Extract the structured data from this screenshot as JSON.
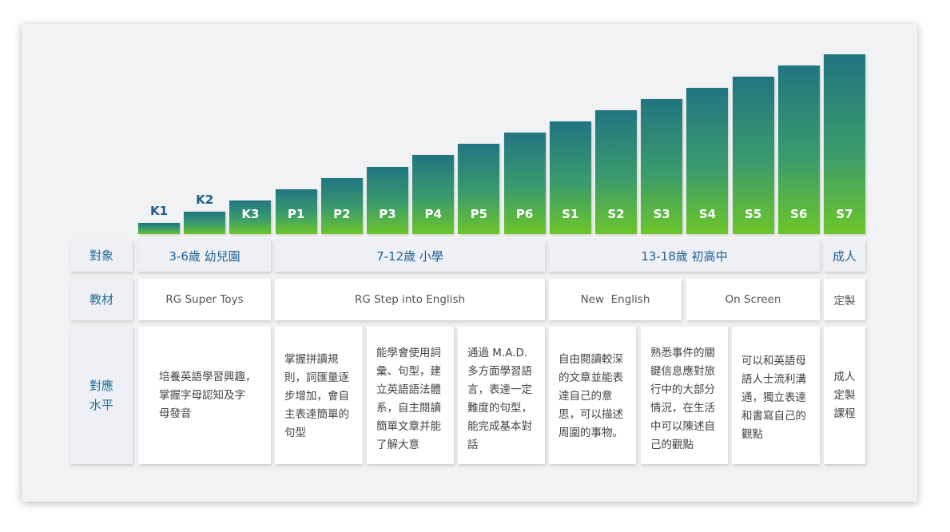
{
  "levels": {
    "names": [
      "K1",
      "K2",
      "K3",
      "P1",
      "P2",
      "P3",
      "P4",
      "P5",
      "P6",
      "S1",
      "S2",
      "S3",
      "S4",
      "S5",
      "S6",
      "S7"
    ],
    "heights": [
      1,
      2,
      3,
      4,
      5,
      6,
      7,
      8,
      9,
      10,
      11,
      12,
      13,
      14,
      15,
      16
    ]
  },
  "rows": {
    "audience": "對象",
    "material": "教材",
    "level_line1": "對應",
    "level_line2": "水平"
  },
  "audience": [
    {
      "label": "3-6歲 幼兒園"
    },
    {
      "label": "7-12歲 小學"
    },
    {
      "label": "13-18歲 初高中"
    },
    {
      "label": "成人"
    }
  ],
  "materials": [
    {
      "label": "RG Super Toys"
    },
    {
      "label": "RG Step into English"
    },
    {
      "label": "New  English"
    },
    {
      "label": "On Screen"
    },
    {
      "label": "定製"
    }
  ],
  "descriptions": [
    {
      "text": "培養英語學習興趣，\n掌握字母認知及字\n母發音"
    },
    {
      "text": "掌握拼讀規\n則，詞匯量逐\n步增加，會自\n主表達簡單的\n句型"
    },
    {
      "text": "能學會使用詞\n彙、句型，建\n立英語語法體\n系，自主閱讀\n簡單文章并能\n了解大意"
    },
    {
      "text": "通過 M.A.D.\n多方面學習語\n言，表達一定\n難度的句型，\n能完成基本對\n話"
    },
    {
      "text": "自由閱讀較深\n的文章並能表\n達自己的意\n思，可以描述\n周圍的事物。"
    },
    {
      "text": "熟悉事件的關\n鍵信息應對旅\n行中的大部分\n情況，在生活\n中可以陳述自\n己的觀點"
    },
    {
      "text": "可以和英語母\n語人士流利溝\n通，獨立表達\n和書寫自己的\n觀點"
    },
    {
      "text": "成人\n定製\n課程"
    }
  ]
}
